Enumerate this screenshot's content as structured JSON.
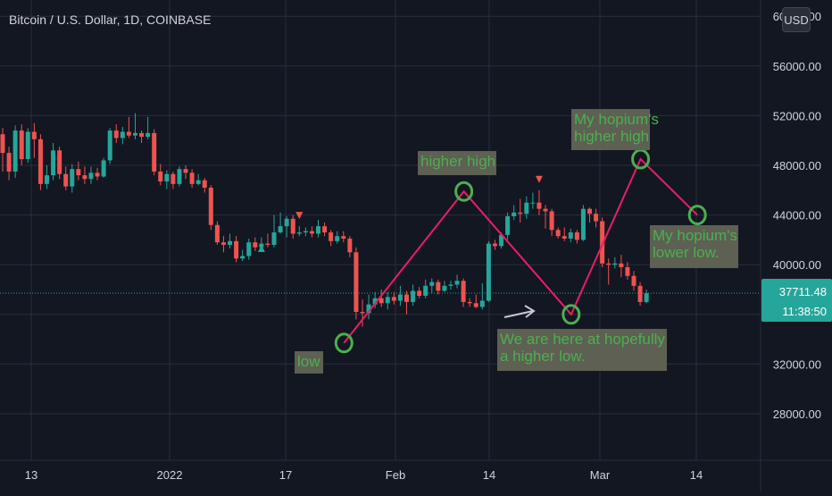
{
  "header": {
    "title": "Bitcoin / U.S. Dollar, 1D, COINBASE",
    "currency": "USD"
  },
  "price_badge": {
    "price": "37711.48",
    "countdown": "11:38:50",
    "color": "#26a69a"
  },
  "colors": {
    "up": "#26a69a",
    "down": "#ef5350",
    "bg": "#131722",
    "grid": "#2a2e39",
    "text": "#d1d4dc",
    "line": "#e91e63",
    "annotation_text": "#4caf50",
    "annotation_box": "#5d6052",
    "circle": "#4caf50"
  },
  "annotations": {
    "low": "low",
    "higher_high": "higher high",
    "hopium_high_1": "My hopium's",
    "hopium_high_2": "higher high",
    "hopium_low_1": "My hopium's",
    "hopium_low_2": "lower low.",
    "here_1": "We are here at hopefully",
    "here_2": "a higher low."
  },
  "chart_data": {
    "type": "candlestick",
    "title": "Bitcoin / U.S. Dollar, 1D, COINBASE",
    "ylim": [
      25000,
      60000
    ],
    "y_ticks": [
      "28000.00",
      "32000.00",
      "36000.00",
      "40000.00",
      "44000.00",
      "48000.00",
      "52000.00",
      "56000.00",
      "60000.00"
    ],
    "x_ticks": [
      "13",
      "2022",
      "17",
      "Feb",
      "14",
      "Mar",
      "14"
    ],
    "current_price": 37711.48,
    "candles": [
      [
        50500,
        49000,
        51000,
        47500
      ],
      [
        49000,
        47500,
        49500,
        46800
      ],
      [
        47500,
        50800,
        51200,
        47000
      ],
      [
        50800,
        48500,
        51300,
        48000
      ],
      [
        48500,
        50700,
        51000,
        48200
      ],
      [
        50700,
        50100,
        51400,
        48600
      ],
      [
        50100,
        46500,
        50500,
        46000
      ],
      [
        46500,
        47200,
        48000,
        46100
      ],
      [
        47200,
        49200,
        49800,
        46800
      ],
      [
        49200,
        47300,
        49500,
        46900
      ],
      [
        47300,
        46300,
        47900,
        46000
      ],
      [
        46300,
        47700,
        48100,
        45800
      ],
      [
        47700,
        47200,
        48300,
        46800
      ],
      [
        47200,
        46900,
        47900,
        46500
      ],
      [
        46900,
        47400,
        47900,
        46500
      ],
      [
        47400,
        47100,
        47800,
        46800
      ],
      [
        47100,
        48400,
        48600,
        47000
      ],
      [
        48400,
        50800,
        51000,
        48100
      ],
      [
        50800,
        50200,
        51300,
        49800
      ],
      [
        50200,
        50700,
        51100,
        49700
      ],
      [
        50700,
        50400,
        51900,
        50200
      ],
      [
        50400,
        50600,
        52200,
        50100
      ],
      [
        50600,
        50300,
        50800,
        49800
      ],
      [
        50300,
        50600,
        51900,
        50100
      ],
      [
        50600,
        47500,
        50900,
        47200
      ],
      [
        47500,
        46700,
        48100,
        46400
      ],
      [
        46700,
        47300,
        47600,
        46100
      ],
      [
        47300,
        46500,
        47500,
        46100
      ],
      [
        46500,
        47700,
        47900,
        46300
      ],
      [
        47700,
        47400,
        48000,
        46900
      ],
      [
        47400,
        46500,
        47700,
        46200
      ],
      [
        46500,
        46800,
        47300,
        46400
      ],
      [
        46800,
        46200,
        47000,
        45800
      ],
      [
        46200,
        43200,
        46400,
        42800
      ],
      [
        43200,
        41800,
        43500,
        41600
      ],
      [
        41800,
        41600,
        42300,
        41000
      ],
      [
        41600,
        41900,
        42500,
        41300
      ],
      [
        41900,
        40500,
        42300,
        40200
      ],
      [
        40500,
        40700,
        41200,
        40300
      ],
      [
        40700,
        41800,
        42100,
        40400
      ],
      [
        41800,
        41400,
        42200,
        41100
      ],
      [
        41400,
        41700,
        42200,
        41200
      ],
      [
        41700,
        41600,
        42500,
        41400
      ],
      [
        41600,
        42600,
        44000,
        41400
      ],
      [
        42600,
        43100,
        44200,
        42500
      ],
      [
        43100,
        43700,
        43900,
        42200
      ],
      [
        43700,
        42500,
        44000,
        42100
      ],
      [
        42500,
        42600,
        43100,
        42300
      ],
      [
        42600,
        42700,
        43000,
        42300
      ],
      [
        42700,
        42500,
        43100,
        42200
      ],
      [
        42500,
        43100,
        43600,
        42200
      ],
      [
        43100,
        42600,
        43400,
        42300
      ],
      [
        42600,
        41900,
        42800,
        41500
      ],
      [
        41900,
        42300,
        42700,
        41700
      ],
      [
        42300,
        42100,
        42700,
        41800
      ],
      [
        42100,
        41000,
        42300,
        40600
      ],
      [
        41000,
        36200,
        41400,
        35600
      ],
      [
        36200,
        36100,
        37200,
        35000
      ],
      [
        36100,
        36800,
        37600,
        35600
      ],
      [
        36800,
        37300,
        37800,
        36500
      ],
      [
        37300,
        36900,
        38000,
        36600
      ],
      [
        36900,
        37400,
        37800,
        36400
      ],
      [
        37400,
        37100,
        37800,
        36800
      ],
      [
        37100,
        37600,
        38300,
        36700
      ],
      [
        37600,
        37000,
        37900,
        36000
      ],
      [
        37000,
        37900,
        38400,
        36700
      ],
      [
        37900,
        37500,
        38200,
        37300
      ],
      [
        37500,
        38300,
        38800,
        37300
      ],
      [
        38300,
        38600,
        38900,
        37700
      ],
      [
        38600,
        37900,
        38800,
        37600
      ],
      [
        37900,
        38300,
        38700,
        37800
      ],
      [
        38300,
        38400,
        38700,
        38000
      ],
      [
        38400,
        38700,
        39200,
        38100
      ],
      [
        38700,
        37000,
        38900,
        36600
      ],
      [
        37000,
        36900,
        37300,
        36600
      ],
      [
        36900,
        36600,
        37600,
        36500
      ],
      [
        36600,
        37100,
        38500,
        36400
      ],
      [
        37100,
        41700,
        41900,
        37000
      ],
      [
        41700,
        41500,
        42000,
        41200
      ],
      [
        41500,
        42400,
        42600,
        41300
      ],
      [
        42400,
        43900,
        44200,
        42000
      ],
      [
        43900,
        44200,
        44800,
        43600
      ],
      [
        44200,
        44100,
        45300,
        43400
      ],
      [
        44100,
        45000,
        45500,
        43700
      ],
      [
        45000,
        45000,
        45800,
        44500
      ],
      [
        45000,
        44500,
        46000,
        44000
      ],
      [
        44500,
        44300,
        44800,
        42900
      ],
      [
        44300,
        42800,
        44500,
        42300
      ],
      [
        42800,
        42300,
        43000,
        42100
      ],
      [
        42300,
        42100,
        43000,
        41900
      ],
      [
        42100,
        42600,
        42900,
        41800
      ],
      [
        42600,
        42000,
        42800,
        41700
      ],
      [
        42000,
        44500,
        44800,
        41900
      ],
      [
        44500,
        44100,
        44600,
        43400
      ],
      [
        44100,
        43500,
        44500,
        43000
      ],
      [
        43500,
        40100,
        43800,
        39800
      ],
      [
        40100,
        40000,
        40500,
        38400
      ],
      [
        40000,
        40100,
        40600,
        39700
      ],
      [
        40100,
        39800,
        40800,
        39000
      ],
      [
        39800,
        39100,
        40200,
        38800
      ],
      [
        39100,
        38300,
        39500,
        37900
      ],
      [
        38300,
        37000,
        38600,
        36700
      ],
      [
        37000,
        37700,
        38000,
        36900
      ]
    ],
    "labels_markers": [
      {
        "type": "triangle-up",
        "candle": 41
      },
      {
        "type": "triangle-down",
        "candle": 47
      },
      {
        "type": "triangle-down",
        "candle": 85
      }
    ],
    "drawn_path": [
      {
        "label": "low",
        "date_index": 54,
        "price": 33700
      },
      {
        "label": "higher high",
        "date_index": 73,
        "price": 45900
      },
      {
        "label": "We are here at hopefully a higher low.",
        "date_index": 90,
        "price": 36000
      },
      {
        "label": "My hopium's higher high",
        "date_index": 101,
        "price": 48500
      },
      {
        "label": "My hopium's lower low.",
        "date_index": 110,
        "price": 44000
      }
    ]
  }
}
